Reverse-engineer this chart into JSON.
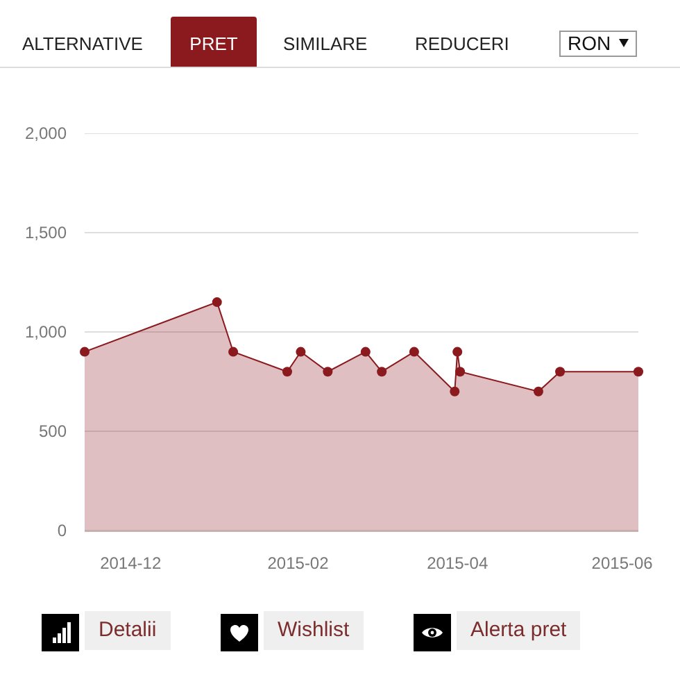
{
  "chart_data": {
    "type": "area",
    "x": [
      "2014-11-14",
      "2015-01-02",
      "2015-01-08",
      "2015-01-28",
      "2015-02-02",
      "2015-02-12",
      "2015-02-26",
      "2015-03-04",
      "2015-03-16",
      "2015-03-31",
      "2015-04-01",
      "2015-04-02",
      "2015-05-01",
      "2015-05-09",
      "2015-06-07"
    ],
    "values": [
      900,
      1150,
      900,
      800,
      900,
      800,
      900,
      800,
      900,
      700,
      900,
      800,
      700,
      800,
      800
    ],
    "color": "#8b1a1f",
    "xlim": [
      "2014-11-14",
      "2015-06-07"
    ],
    "xticks": [
      "2014-12",
      "2015-02",
      "2015-04",
      "2015-06"
    ],
    "ylim": [
      0,
      2000
    ],
    "yticks": [
      0,
      500,
      {
        "value": 1000,
        "label": "1,000"
      },
      {
        "value": 1500,
        "label": "1,500"
      },
      {
        "value": 2000,
        "label": "2,000"
      }
    ],
    "grid": "y",
    "marker": "circle",
    "annotations": [
      "ALTERNATIVE",
      "PRET",
      "SIMILARE",
      "REDUCERI",
      "RON",
      "Detalii",
      "Wishlist",
      "Alerta pret"
    ]
  }
}
